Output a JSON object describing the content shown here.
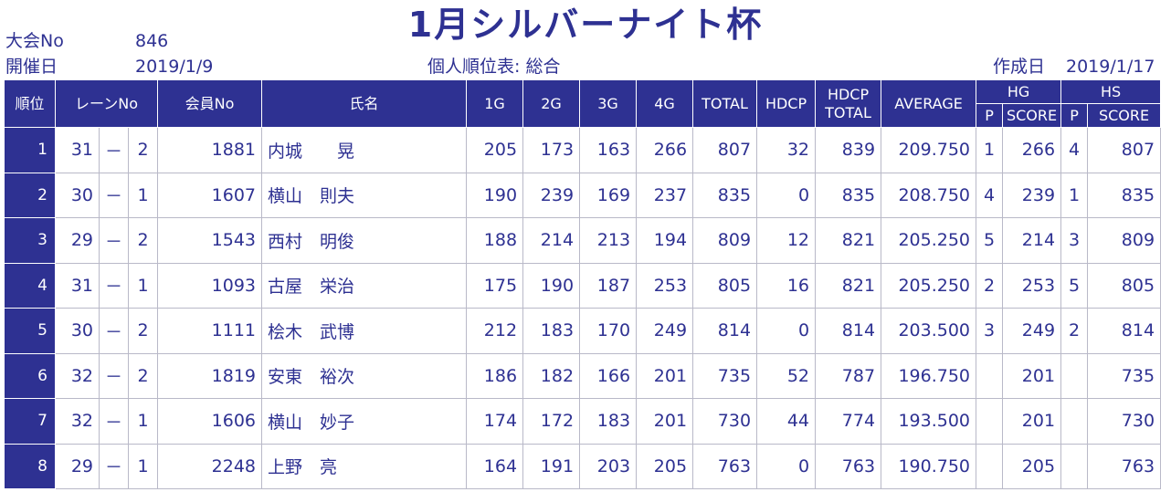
{
  "header": {
    "title": "1月シルバーナイト杯",
    "tournament_no_label": "大会No",
    "tournament_no": "846",
    "date_label": "開催日",
    "date": "2019/1/9",
    "subtitle": "個人順位表: 総合",
    "created_label": "作成日",
    "created_date": "2019/1/17"
  },
  "columns": {
    "rank": "順位",
    "lane": "レーンNo",
    "member": "会員No",
    "name": "氏名",
    "g1": "1G",
    "g2": "2G",
    "g3": "3G",
    "g4": "4G",
    "total": "TOTAL",
    "hdcp": "HDCP",
    "hdcp_total_1": "HDCP",
    "hdcp_total_2": "TOTAL",
    "average": "AVERAGE",
    "hg": "HG",
    "hs": "HS",
    "p": "P",
    "score": "SCORE"
  },
  "rows": [
    {
      "rank": "1",
      "lane_a": "31",
      "dash": "－",
      "lane_b": "2",
      "member": "1881",
      "name": "内城　　晃",
      "g1": "205",
      "g2": "173",
      "g3": "163",
      "g4": "266",
      "total": "807",
      "hdcp": "32",
      "hdcp_total": "839",
      "average": "209.750",
      "hg_p": "1",
      "hg_score": "266",
      "hs_p": "4",
      "hs_score": "807"
    },
    {
      "rank": "2",
      "lane_a": "30",
      "dash": "－",
      "lane_b": "1",
      "member": "1607",
      "name": "横山　則夫",
      "g1": "190",
      "g2": "239",
      "g3": "169",
      "g4": "237",
      "total": "835",
      "hdcp": "0",
      "hdcp_total": "835",
      "average": "208.750",
      "hg_p": "4",
      "hg_score": "239",
      "hs_p": "1",
      "hs_score": "835"
    },
    {
      "rank": "3",
      "lane_a": "29",
      "dash": "－",
      "lane_b": "2",
      "member": "1543",
      "name": "西村　明俊",
      "g1": "188",
      "g2": "214",
      "g3": "213",
      "g4": "194",
      "total": "809",
      "hdcp": "12",
      "hdcp_total": "821",
      "average": "205.250",
      "hg_p": "5",
      "hg_score": "214",
      "hs_p": "3",
      "hs_score": "809"
    },
    {
      "rank": "4",
      "lane_a": "31",
      "dash": "－",
      "lane_b": "1",
      "member": "1093",
      "name": "古屋　栄治",
      "g1": "175",
      "g2": "190",
      "g3": "187",
      "g4": "253",
      "total": "805",
      "hdcp": "16",
      "hdcp_total": "821",
      "average": "205.250",
      "hg_p": "2",
      "hg_score": "253",
      "hs_p": "5",
      "hs_score": "805"
    },
    {
      "rank": "5",
      "lane_a": "30",
      "dash": "－",
      "lane_b": "2",
      "member": "1111",
      "name": "桧木　武博",
      "g1": "212",
      "g2": "183",
      "g3": "170",
      "g4": "249",
      "total": "814",
      "hdcp": "0",
      "hdcp_total": "814",
      "average": "203.500",
      "hg_p": "3",
      "hg_score": "249",
      "hs_p": "2",
      "hs_score": "814"
    },
    {
      "rank": "6",
      "lane_a": "32",
      "dash": "－",
      "lane_b": "2",
      "member": "1819",
      "name": "安東　裕次",
      "g1": "186",
      "g2": "182",
      "g3": "166",
      "g4": "201",
      "total": "735",
      "hdcp": "52",
      "hdcp_total": "787",
      "average": "196.750",
      "hg_p": "",
      "hg_score": "201",
      "hs_p": "",
      "hs_score": "735"
    },
    {
      "rank": "7",
      "lane_a": "32",
      "dash": "－",
      "lane_b": "1",
      "member": "1606",
      "name": "横山　妙子",
      "g1": "174",
      "g2": "172",
      "g3": "183",
      "g4": "201",
      "total": "730",
      "hdcp": "44",
      "hdcp_total": "774",
      "average": "193.500",
      "hg_p": "",
      "hg_score": "201",
      "hs_p": "",
      "hs_score": "730"
    },
    {
      "rank": "8",
      "lane_a": "29",
      "dash": "－",
      "lane_b": "1",
      "member": "2248",
      "name": "上野　亮",
      "g1": "164",
      "g2": "191",
      "g3": "203",
      "g4": "205",
      "total": "763",
      "hdcp": "0",
      "hdcp_total": "763",
      "average": "190.750",
      "hg_p": "",
      "hg_score": "205",
      "hs_p": "",
      "hs_score": "763"
    }
  ]
}
